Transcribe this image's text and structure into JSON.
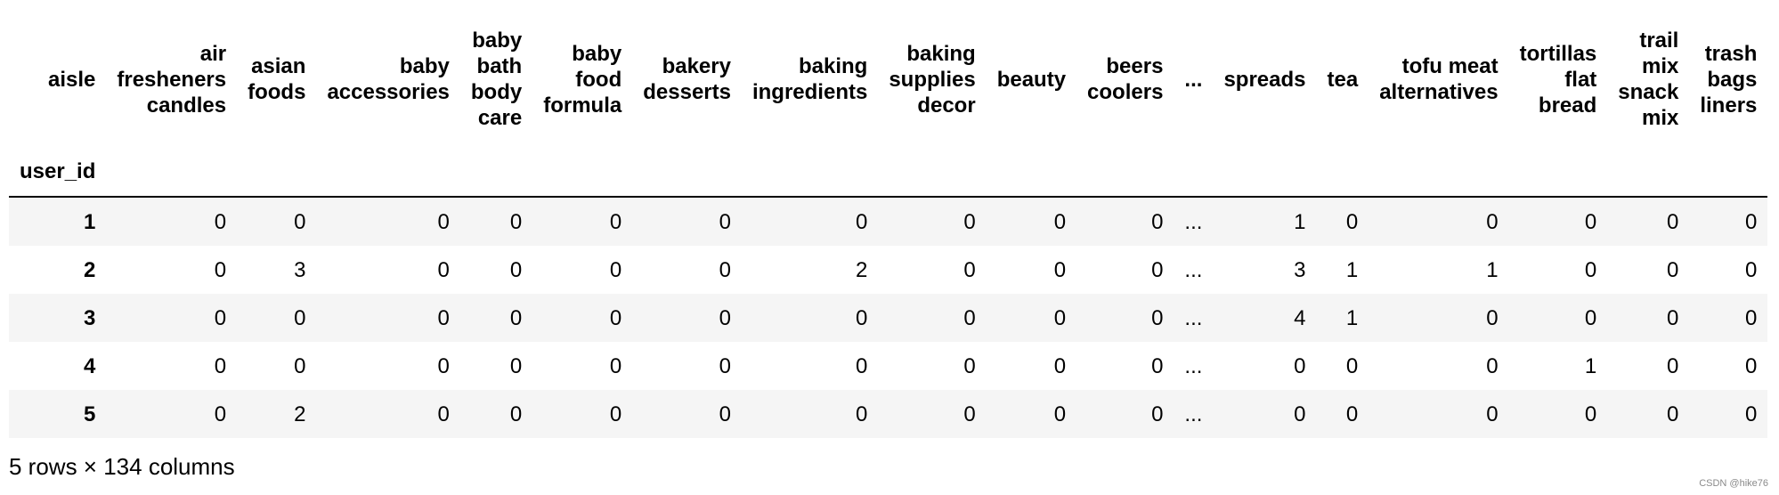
{
  "table": {
    "columns_name": "aisle",
    "index_name": "user_id",
    "columns": [
      [
        "air",
        "fresheners",
        "candles"
      ],
      [
        "asian",
        "foods"
      ],
      [
        "baby",
        "accessories"
      ],
      [
        "baby",
        "bath",
        "body",
        "care"
      ],
      [
        "baby",
        "food",
        "formula"
      ],
      [
        "bakery",
        "desserts"
      ],
      [
        "baking",
        "ingredients"
      ],
      [
        "baking",
        "supplies",
        "decor"
      ],
      [
        "beauty"
      ],
      [
        "beers",
        "coolers"
      ],
      [
        "..."
      ],
      [
        "spreads"
      ],
      [
        "tea"
      ],
      [
        "tofu meat",
        "alternatives"
      ],
      [
        "tortillas",
        "flat",
        "bread"
      ],
      [
        "trail",
        "mix",
        "snack",
        "mix"
      ],
      [
        "trash",
        "bags",
        "liners"
      ]
    ],
    "rows": [
      {
        "index": "1",
        "values": [
          "0",
          "0",
          "0",
          "0",
          "0",
          "0",
          "0",
          "0",
          "0",
          "0",
          "...",
          "1",
          "0",
          "0",
          "0",
          "0",
          "0"
        ]
      },
      {
        "index": "2",
        "values": [
          "0",
          "3",
          "0",
          "0",
          "0",
          "0",
          "2",
          "0",
          "0",
          "0",
          "...",
          "3",
          "1",
          "1",
          "0",
          "0",
          "0"
        ]
      },
      {
        "index": "3",
        "values": [
          "0",
          "0",
          "0",
          "0",
          "0",
          "0",
          "0",
          "0",
          "0",
          "0",
          "...",
          "4",
          "1",
          "0",
          "0",
          "0",
          "0"
        ]
      },
      {
        "index": "4",
        "values": [
          "0",
          "0",
          "0",
          "0",
          "0",
          "0",
          "0",
          "0",
          "0",
          "0",
          "...",
          "0",
          "0",
          "0",
          "1",
          "0",
          "0"
        ]
      },
      {
        "index": "5",
        "values": [
          "0",
          "2",
          "0",
          "0",
          "0",
          "0",
          "0",
          "0",
          "0",
          "0",
          "...",
          "0",
          "0",
          "0",
          "0",
          "0",
          "0"
        ]
      }
    ]
  },
  "caption": "5 rows × 134 columns",
  "watermark": "CSDN @hike76"
}
